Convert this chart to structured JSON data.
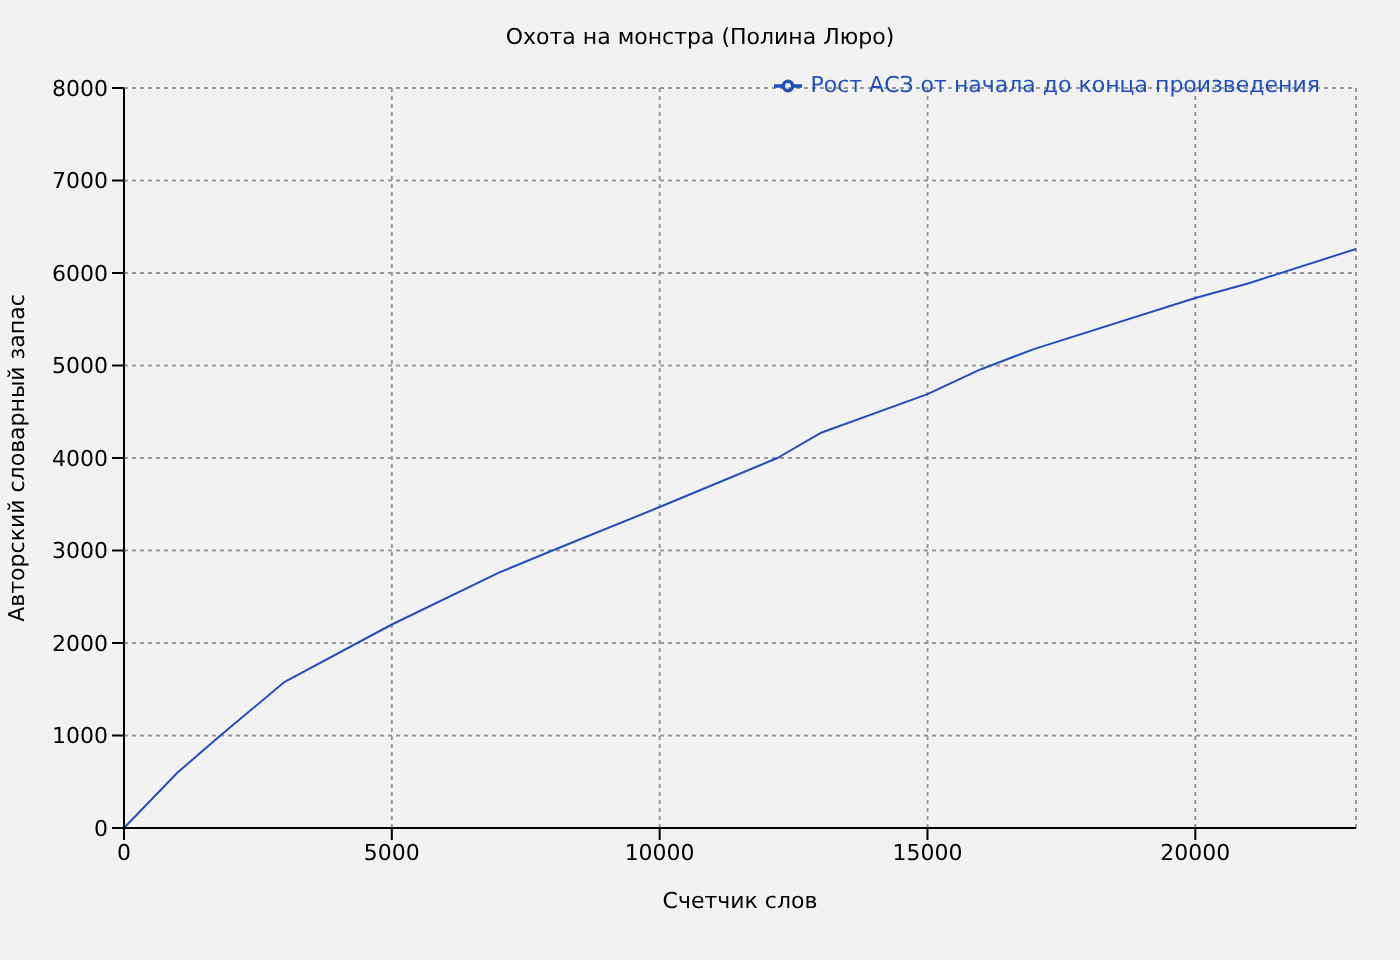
{
  "chart_data": {
    "type": "line",
    "title": "Охота на монстра (Полина Люро)",
    "xlabel": "Счетчик слов",
    "ylabel": "Авторский словарный запас",
    "x": [
      0,
      1000,
      1800,
      3000,
      5000,
      7000,
      8000,
      10000,
      12200,
      13000,
      15000,
      16000,
      17000,
      20000,
      21000,
      23000
    ],
    "series": [
      {
        "name": "Рост АСЗ от начала до конца произведения",
        "color": "#1f4fbf",
        "values": [
          0,
          600,
          1000,
          1580,
          2200,
          2760,
          3000,
          3470,
          4000,
          4270,
          4690,
          4960,
          5180,
          5730,
          5890,
          6260
        ]
      }
    ],
    "xlim": [
      0,
      23000
    ],
    "xticks": [
      0,
      5000,
      10000,
      15000,
      20000
    ],
    "ylim": [
      0,
      8000
    ],
    "yticks": [
      0,
      1000,
      2000,
      3000,
      4000,
      5000,
      6000,
      7000,
      8000
    ],
    "grid": true,
    "legend": "top right",
    "marker": "none",
    "line_style": "solid"
  }
}
